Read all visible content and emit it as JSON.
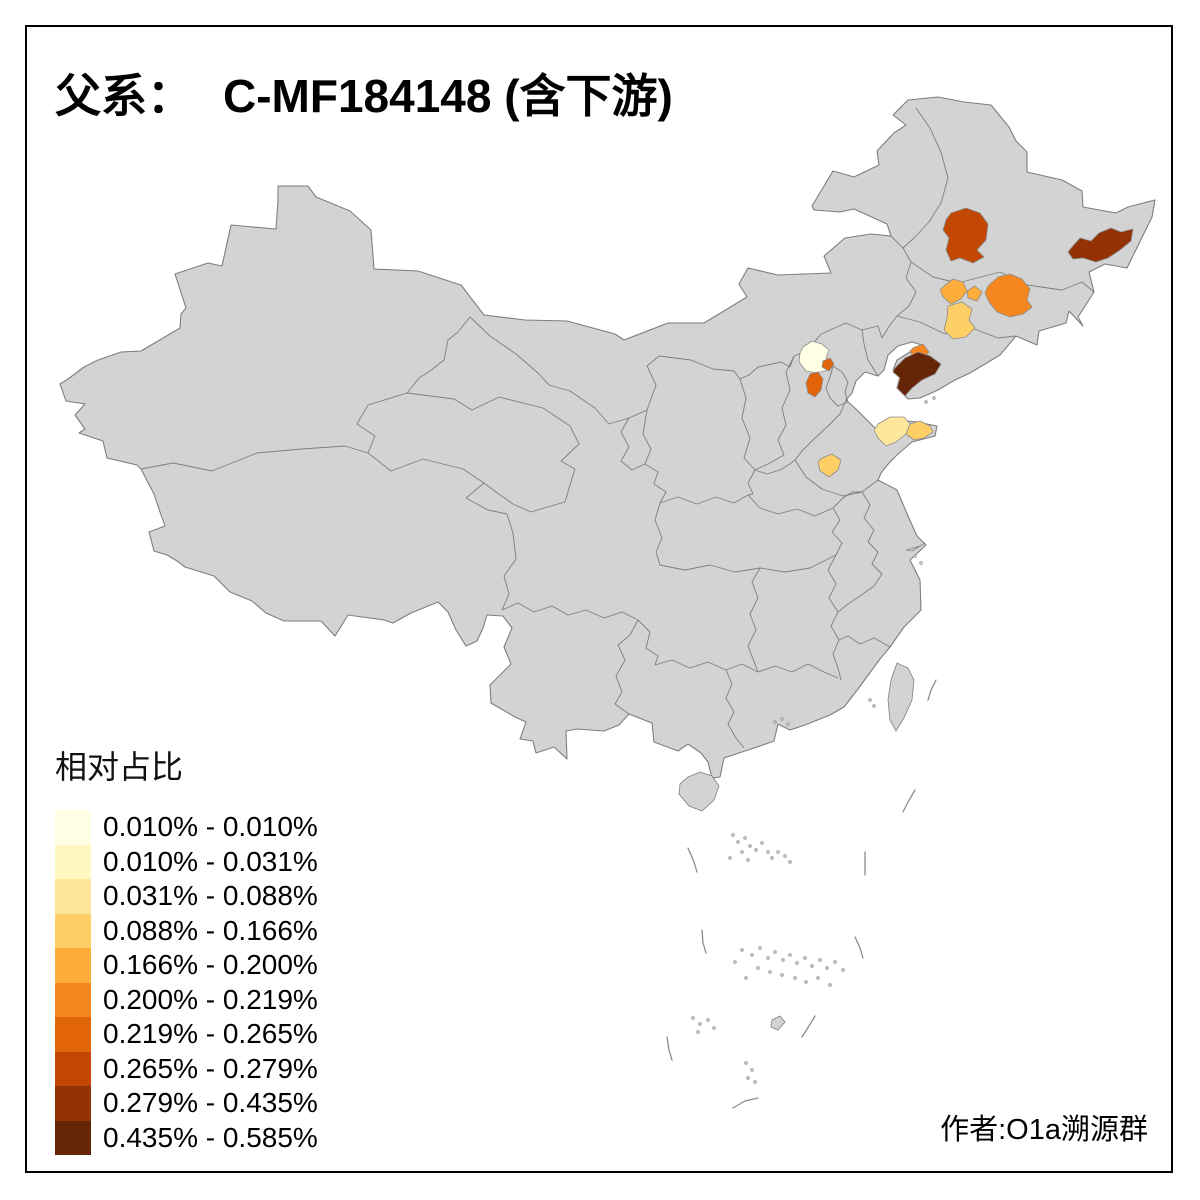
{
  "title": {
    "prefix": "父系：",
    "value": "C-MF184148 (含下游)"
  },
  "legend": {
    "title": "相对占比",
    "entries": [
      {
        "label": "0.010% - 0.010%",
        "color": "#FFFFE5"
      },
      {
        "label": "0.010% - 0.031%",
        "color": "#FFF8C1"
      },
      {
        "label": "0.031% - 0.088%",
        "color": "#FEE79B"
      },
      {
        "label": "0.088% - 0.166%",
        "color": "#FECF65"
      },
      {
        "label": "0.166% - 0.200%",
        "color": "#FEAC3A"
      },
      {
        "label": "0.200% - 0.219%",
        "color": "#F68720"
      },
      {
        "label": "0.219% - 0.265%",
        "color": "#E16408"
      },
      {
        "label": "0.265% - 0.279%",
        "color": "#C14702"
      },
      {
        "label": "0.279% - 0.435%",
        "color": "#933204"
      },
      {
        "label": "0.435% - 0.585%",
        "color": "#662506"
      }
    ]
  },
  "credit": "作者:O1a溯源群",
  "map": {
    "land_color": "#D3D3D3",
    "border_color": "#7E7E7E",
    "sea_color": "#FFFFFF",
    "regions": [
      {
        "id": "qiqihar",
        "class_index": 7
      },
      {
        "id": "northeast-far-east",
        "class_index": 8
      },
      {
        "id": "changchun",
        "class_index": 5
      },
      {
        "id": "songyuan-west",
        "class_index": 4
      },
      {
        "id": "songyuan-east",
        "class_index": 4
      },
      {
        "id": "siping",
        "class_index": 3
      },
      {
        "id": "yingkou",
        "class_index": 5
      },
      {
        "id": "dalian",
        "class_index": 9
      },
      {
        "id": "beijing",
        "class_index": 0
      },
      {
        "id": "beijing-exclave",
        "class_index": 6
      },
      {
        "id": "langfang",
        "class_index": 6
      },
      {
        "id": "yantai",
        "class_index": 2
      },
      {
        "id": "weihai",
        "class_index": 3
      },
      {
        "id": "zibo",
        "class_index": 3
      }
    ]
  }
}
